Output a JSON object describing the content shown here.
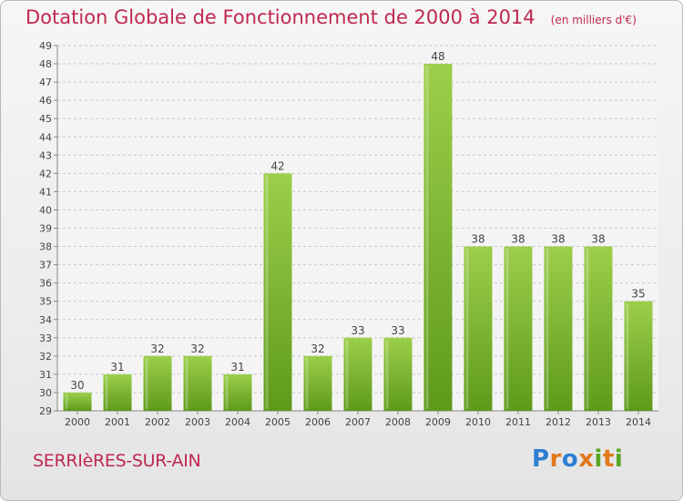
{
  "header": {
    "title": "Dotation Globale de Fonctionnement de 2000 à 2014",
    "unit_note": "(en milliers d'€)"
  },
  "footer": {
    "commune": "SERRIèRES-SUR-AIN",
    "brand_letters": [
      "P",
      "r",
      "o",
      "x",
      "i",
      "t",
      "i"
    ]
  },
  "colors": {
    "title": "#c0284f",
    "bar_top": "#9ccf4b",
    "bar_bottom": "#5e9a1a",
    "brand": [
      "#2f7fd2",
      "#e0781a",
      "#2f7fd2",
      "#e0781a",
      "#58a623",
      "#e0781a",
      "#58a623"
    ]
  },
  "chart_data": {
    "type": "bar",
    "categories": [
      "2000",
      "2001",
      "2002",
      "2003",
      "2004",
      "2005",
      "2006",
      "2007",
      "2008",
      "2009",
      "2010",
      "2011",
      "2012",
      "2013",
      "2014"
    ],
    "values": [
      30,
      31,
      32,
      32,
      31,
      42,
      32,
      33,
      33,
      48,
      38,
      38,
      38,
      38,
      35
    ],
    "ylim": [
      29,
      49
    ],
    "yticks": [
      29,
      30,
      31,
      32,
      33,
      34,
      35,
      36,
      37,
      38,
      39,
      40,
      41,
      42,
      43,
      44,
      45,
      46,
      47,
      48,
      49
    ],
    "grid": "horizontal-dashed",
    "data_labels": true
  }
}
